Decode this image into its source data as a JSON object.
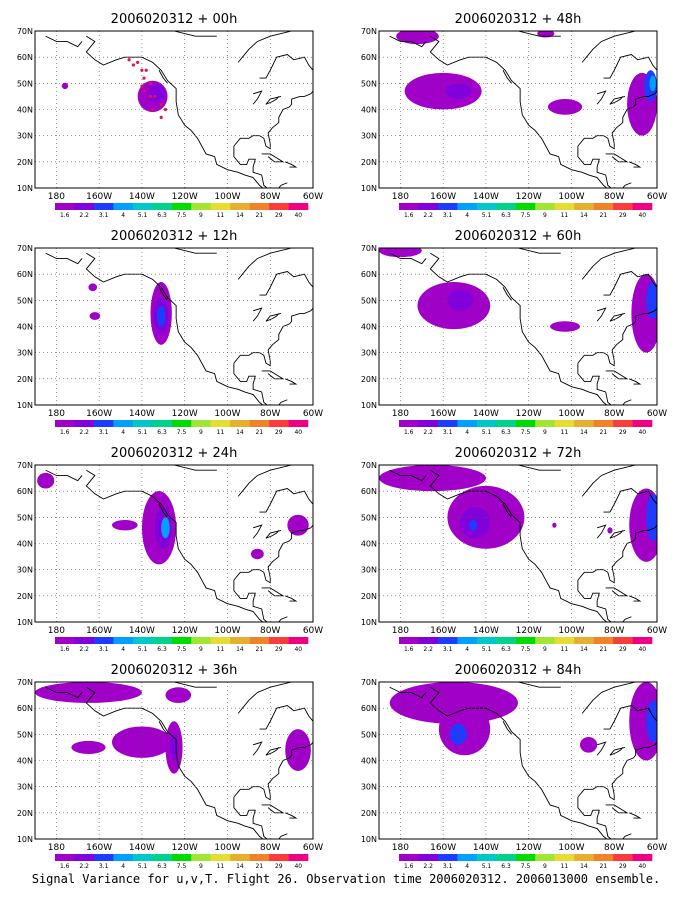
{
  "figure": {
    "caption": "Signal Variance for u,v,T. Flight 26. Observation time 2006020312. 2006013000 ensemble."
  },
  "axes": {
    "lat_labels": [
      "70N",
      "60N",
      "50N",
      "40N",
      "30N",
      "20N",
      "10N"
    ],
    "lon_labels": [
      "180",
      "160W",
      "140W",
      "120W",
      "100W",
      "80W",
      "60W"
    ],
    "lat_range": [
      10,
      70
    ],
    "lon_range": [
      -190,
      -60
    ],
    "grid": "dotted"
  },
  "colorbar": {
    "labels": [
      "1.6",
      "2.2",
      "3.1",
      "4",
      "5.1",
      "6.3",
      "7.5",
      "9",
      "11",
      "14",
      "21",
      "29",
      "40"
    ],
    "colors": [
      "#a000c8",
      "#8200dc",
      "#1e3cff",
      "#00a0ff",
      "#00c8c8",
      "#00d28c",
      "#00dc00",
      "#a0e632",
      "#e6dc32",
      "#e6af2d",
      "#f08228",
      "#fa3c3c",
      "#f00082"
    ]
  },
  "contour_colors": {
    "light": "#a000c8",
    "mid": "#8200dc",
    "deep": "#1e3cff",
    "core": "#00a0ff",
    "land": "#000000",
    "obs_dots": "#e0115f"
  },
  "panels": [
    {
      "title": "2006020312 + 00h",
      "lead": "00h",
      "flight_track": true
    },
    {
      "title": "2006020312 + 48h",
      "lead": "48h",
      "flight_track": false
    },
    {
      "title": "2006020312 + 12h",
      "lead": "12h",
      "flight_track": false
    },
    {
      "title": "2006020312 + 60h",
      "lead": "60h",
      "flight_track": false
    },
    {
      "title": "2006020312 + 24h",
      "lead": "24h",
      "flight_track": false
    },
    {
      "title": "2006020312 + 72h",
      "lead": "72h",
      "flight_track": false
    },
    {
      "title": "2006020312 + 36h",
      "lead": "36h",
      "flight_track": false
    },
    {
      "title": "2006020312 + 84h",
      "lead": "84h",
      "flight_track": false
    }
  ],
  "chart_data": {
    "type": "map",
    "projection": "lat-lon",
    "field": "signal variance (u,v,T)",
    "panels": [
      {
        "lead": "00h",
        "blobs": [
          {
            "lon": -135,
            "lat": 45,
            "rx": 7,
            "ry": 6,
            "level": "light"
          },
          {
            "lon": -133,
            "lat": 46,
            "rx": 4,
            "ry": 3.5,
            "level": "mid"
          },
          {
            "lon": -176,
            "lat": 49,
            "rx": 1.5,
            "ry": 1.2,
            "level": "light"
          }
        ]
      },
      {
        "lead": "48h",
        "blobs": [
          {
            "lon": -172,
            "lat": 68,
            "rx": 10,
            "ry": 3,
            "level": "light"
          },
          {
            "lon": -112,
            "lat": 69,
            "rx": 4,
            "ry": 1.5,
            "level": "light"
          },
          {
            "lon": -160,
            "lat": 47,
            "rx": 18,
            "ry": 7,
            "level": "light"
          },
          {
            "lon": -153,
            "lat": 47,
            "rx": 6,
            "ry": 3,
            "level": "mid"
          },
          {
            "lon": -103,
            "lat": 41,
            "rx": 8,
            "ry": 3,
            "level": "light"
          },
          {
            "lon": -67,
            "lat": 42,
            "rx": 7,
            "ry": 12,
            "level": "light"
          },
          {
            "lon": -63,
            "lat": 49,
            "rx": 3,
            "ry": 6,
            "level": "deep"
          },
          {
            "lon": -62,
            "lat": 50,
            "rx": 1.5,
            "ry": 3,
            "level": "core"
          }
        ]
      },
      {
        "lead": "12h",
        "blobs": [
          {
            "lon": -131,
            "lat": 45,
            "rx": 5,
            "ry": 12,
            "level": "light"
          },
          {
            "lon": -131,
            "lat": 44,
            "rx": 3.5,
            "ry": 7,
            "level": "mid"
          },
          {
            "lon": -131,
            "lat": 44,
            "rx": 2,
            "ry": 4,
            "level": "deep"
          },
          {
            "lon": -163,
            "lat": 55,
            "rx": 2,
            "ry": 1.5,
            "level": "light"
          },
          {
            "lon": -162,
            "lat": 44,
            "rx": 2.5,
            "ry": 1.5,
            "level": "light"
          }
        ]
      },
      {
        "lead": "60h",
        "blobs": [
          {
            "lon": -180,
            "lat": 69,
            "rx": 10,
            "ry": 2.5,
            "level": "light"
          },
          {
            "lon": -155,
            "lat": 48,
            "rx": 17,
            "ry": 9,
            "level": "light"
          },
          {
            "lon": -152,
            "lat": 50,
            "rx": 6,
            "ry": 4,
            "level": "mid"
          },
          {
            "lon": -103,
            "lat": 40,
            "rx": 7,
            "ry": 2,
            "level": "light"
          },
          {
            "lon": -65,
            "lat": 45,
            "rx": 7,
            "ry": 15,
            "level": "light"
          },
          {
            "lon": -62,
            "lat": 50,
            "rx": 3,
            "ry": 7,
            "level": "deep"
          }
        ]
      },
      {
        "lead": "24h",
        "blobs": [
          {
            "lon": -132,
            "lat": 46,
            "rx": 8,
            "ry": 14,
            "level": "light"
          },
          {
            "lon": -130,
            "lat": 46,
            "rx": 4,
            "ry": 8,
            "level": "mid"
          },
          {
            "lon": -129,
            "lat": 46,
            "rx": 2,
            "ry": 4,
            "level": "core"
          },
          {
            "lon": -148,
            "lat": 47,
            "rx": 6,
            "ry": 2,
            "level": "light"
          },
          {
            "lon": -185,
            "lat": 64,
            "rx": 4,
            "ry": 3,
            "level": "light"
          },
          {
            "lon": -67,
            "lat": 47,
            "rx": 5,
            "ry": 4,
            "level": "light"
          },
          {
            "lon": -86,
            "lat": 36,
            "rx": 3,
            "ry": 2,
            "level": "light"
          }
        ]
      },
      {
        "lead": "72h",
        "blobs": [
          {
            "lon": -165,
            "lat": 65,
            "rx": 25,
            "ry": 5,
            "level": "light"
          },
          {
            "lon": -140,
            "lat": 50,
            "rx": 18,
            "ry": 12,
            "level": "light"
          },
          {
            "lon": -145,
            "lat": 48,
            "rx": 7,
            "ry": 6,
            "level": "mid"
          },
          {
            "lon": -146,
            "lat": 47,
            "rx": 2,
            "ry": 2,
            "level": "deep"
          },
          {
            "lon": -65,
            "lat": 47,
            "rx": 8,
            "ry": 14,
            "level": "light"
          },
          {
            "lon": -62,
            "lat": 50,
            "rx": 3,
            "ry": 9,
            "level": "deep"
          },
          {
            "lon": -82,
            "lat": 45,
            "rx": 1.2,
            "ry": 1.2,
            "level": "light"
          },
          {
            "lon": -108,
            "lat": 47,
            "rx": 1,
            "ry": 1,
            "level": "light"
          }
        ]
      },
      {
        "lead": "36h",
        "blobs": [
          {
            "lon": -165,
            "lat": 66,
            "rx": 25,
            "ry": 4,
            "level": "light"
          },
          {
            "lon": -123,
            "lat": 65,
            "rx": 6,
            "ry": 3,
            "level": "light"
          },
          {
            "lon": -140,
            "lat": 47,
            "rx": 14,
            "ry": 6,
            "level": "light"
          },
          {
            "lon": -125,
            "lat": 45,
            "rx": 4,
            "ry": 10,
            "level": "light"
          },
          {
            "lon": -125,
            "lat": 45,
            "rx": 2,
            "ry": 5,
            "level": "mid"
          },
          {
            "lon": -165,
            "lat": 45,
            "rx": 8,
            "ry": 2.5,
            "level": "light"
          },
          {
            "lon": -67,
            "lat": 44,
            "rx": 6,
            "ry": 8,
            "level": "light"
          }
        ]
      },
      {
        "lead": "84h",
        "blobs": [
          {
            "lon": -155,
            "lat": 62,
            "rx": 30,
            "ry": 8,
            "level": "light"
          },
          {
            "lon": -150,
            "lat": 52,
            "rx": 12,
            "ry": 10,
            "level": "light"
          },
          {
            "lon": -153,
            "lat": 50,
            "rx": 4,
            "ry": 4,
            "level": "deep"
          },
          {
            "lon": -92,
            "lat": 46,
            "rx": 4,
            "ry": 3,
            "level": "light"
          },
          {
            "lon": -65,
            "lat": 55,
            "rx": 8,
            "ry": 15,
            "level": "light"
          },
          {
            "lon": -62,
            "lat": 55,
            "rx": 3,
            "ry": 8,
            "level": "deep"
          }
        ]
      }
    ]
  }
}
